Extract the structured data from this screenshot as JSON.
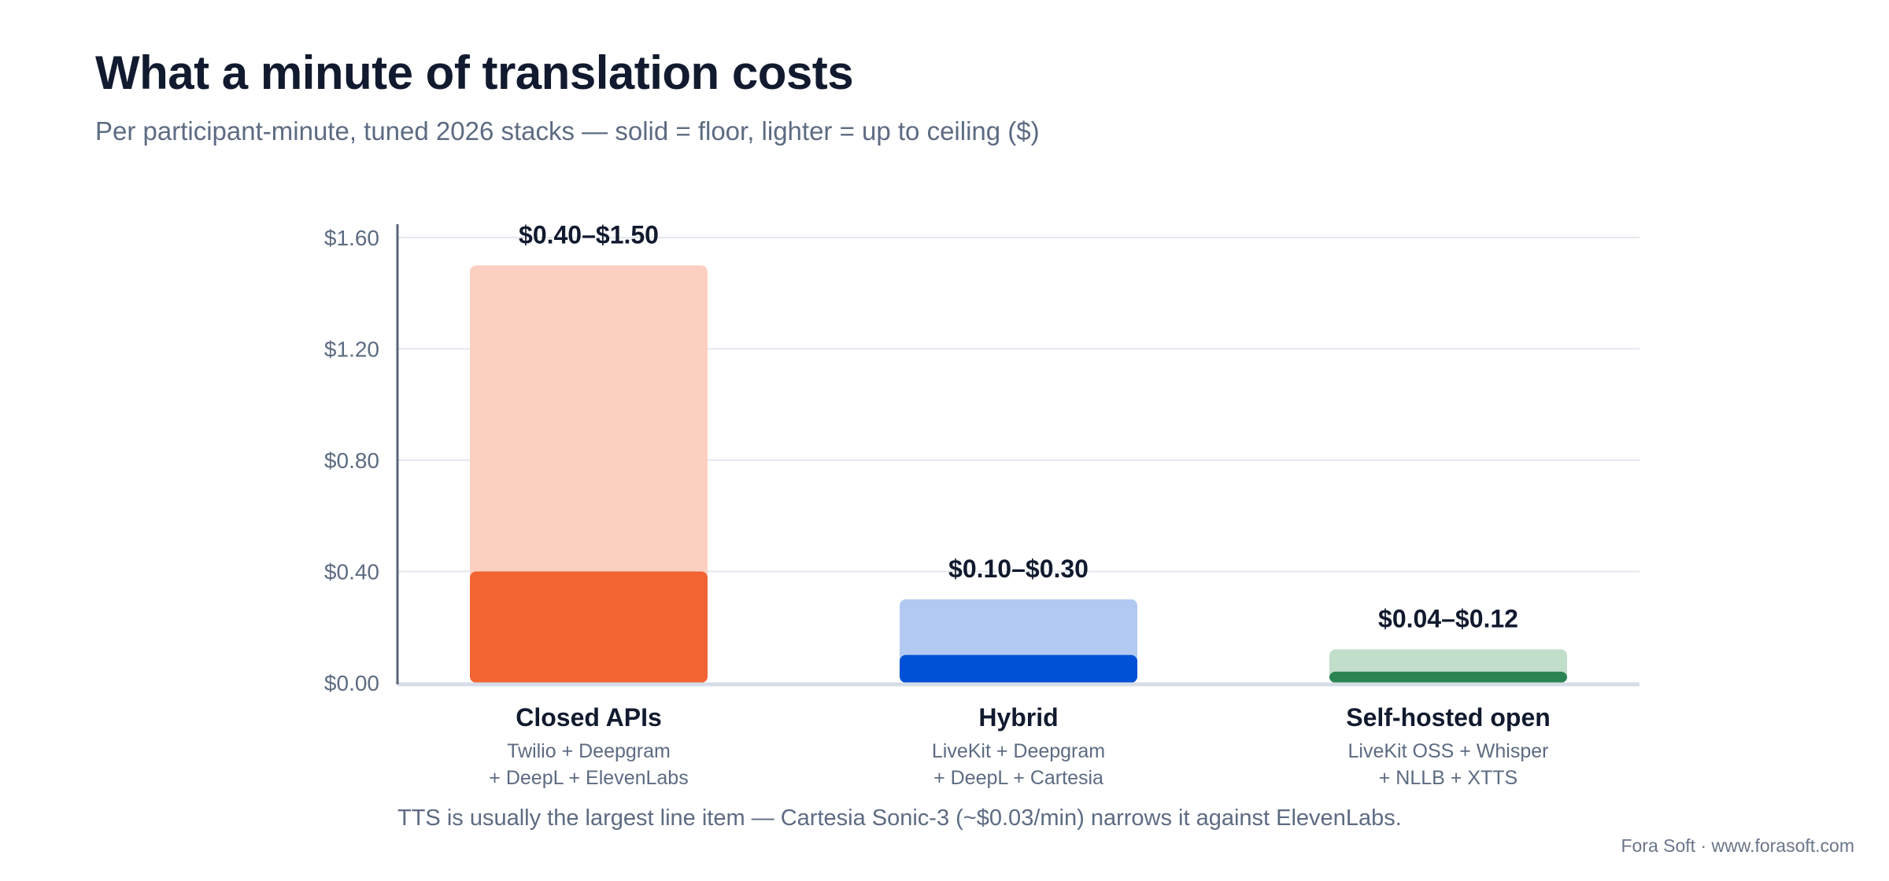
{
  "title": "What a minute of translation costs",
  "subtitle": "Per participant-minute, tuned 2026 stacks — solid = floor, lighter = up to ceiling ($)",
  "footnote": "TTS is usually the largest line item — Cartesia Sonic-3 (~$0.03/min) narrows it against ElevenLabs.",
  "credit": "Fora Soft · www.forasoft.com",
  "chart_data": {
    "type": "bar",
    "stacked_range": true,
    "y_ticks": [
      "$0.00",
      "$0.40",
      "$0.80",
      "$1.20",
      "$1.60"
    ],
    "y_tick_values": [
      0,
      0.4,
      0.8,
      1.2,
      1.6
    ],
    "ylim": [
      0,
      1.6
    ],
    "grid": true,
    "categories": [
      {
        "name": "Closed APIs",
        "detail_line1": "Twilio + Deepgram",
        "detail_line2": "+ DeepL + ElevenLabs",
        "floor": 0.4,
        "ceiling": 1.5,
        "range_label": "$0.40–$1.50",
        "color": "#f26533",
        "light_color": "#fbd0c1"
      },
      {
        "name": "Hybrid",
        "detail_line1": "LiveKit + Deepgram",
        "detail_line2": "+ DeepL + Cartesia",
        "floor": 0.1,
        "ceiling": 0.3,
        "range_label": "$0.10–$0.30",
        "color": "#0051d5",
        "light_color": "#b2c9f2"
      },
      {
        "name": "Self-hosted open",
        "detail_line1": "LiveKit OSS + Whisper",
        "detail_line2": "+ NLLB + XTTS",
        "floor": 0.04,
        "ceiling": 0.12,
        "range_label": "$0.04–$0.12",
        "color": "#2a8452",
        "light_color": "#c1decb"
      }
    ]
  }
}
